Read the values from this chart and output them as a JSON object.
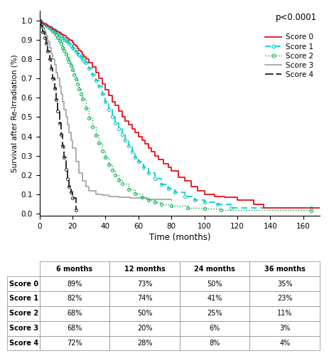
{
  "pvalue_text": "p<0.0001",
  "xlabel": "Time (months)",
  "ylabel": "Survival after Re-Irradiation (%)",
  "xlim": [
    0,
    170
  ],
  "ylim": [
    -0.01,
    1.05
  ],
  "xticks": [
    0,
    20,
    40,
    60,
    80,
    100,
    120,
    140,
    160
  ],
  "yticks": [
    0.0,
    0.1,
    0.2,
    0.3,
    0.4,
    0.5,
    0.6,
    0.7,
    0.8,
    0.9,
    1.0
  ],
  "score0_color": "#e8212b",
  "score1_color": "#00c8c8",
  "score2_color": "#00b050",
  "score3_color": "#a0a0a0",
  "score4_color": "#303030",
  "score0": {
    "time": [
      0,
      1,
      2,
      3,
      4,
      5,
      6,
      7,
      8,
      9,
      10,
      11,
      12,
      13,
      14,
      15,
      16,
      17,
      18,
      19,
      20,
      21,
      22,
      23,
      24,
      25,
      26,
      27,
      28,
      30,
      32,
      34,
      36,
      38,
      40,
      42,
      44,
      46,
      48,
      50,
      52,
      54,
      56,
      58,
      60,
      62,
      64,
      66,
      68,
      70,
      72,
      75,
      78,
      80,
      84,
      88,
      92,
      96,
      100,
      106,
      112,
      120,
      130,
      136,
      170
    ],
    "surv": [
      1.0,
      0.99,
      0.985,
      0.98,
      0.975,
      0.97,
      0.965,
      0.96,
      0.955,
      0.95,
      0.945,
      0.94,
      0.935,
      0.93,
      0.925,
      0.92,
      0.91,
      0.905,
      0.9,
      0.895,
      0.885,
      0.875,
      0.865,
      0.855,
      0.845,
      0.835,
      0.82,
      0.81,
      0.8,
      0.78,
      0.76,
      0.73,
      0.7,
      0.67,
      0.64,
      0.61,
      0.58,
      0.56,
      0.53,
      0.5,
      0.48,
      0.46,
      0.44,
      0.42,
      0.4,
      0.38,
      0.36,
      0.34,
      0.32,
      0.3,
      0.28,
      0.26,
      0.24,
      0.22,
      0.19,
      0.17,
      0.14,
      0.12,
      0.1,
      0.09,
      0.085,
      0.07,
      0.05,
      0.03,
      0.03
    ]
  },
  "score1": {
    "time": [
      0,
      1,
      2,
      3,
      4,
      5,
      6,
      7,
      8,
      9,
      10,
      11,
      12,
      13,
      14,
      15,
      16,
      17,
      18,
      19,
      20,
      21,
      22,
      23,
      24,
      25,
      26,
      27,
      28,
      30,
      32,
      34,
      36,
      38,
      40,
      42,
      44,
      46,
      48,
      50,
      52,
      54,
      56,
      58,
      60,
      63,
      66,
      70,
      74,
      78,
      82,
      88,
      94,
      100,
      108,
      116,
      165
    ],
    "surv": [
      1.0,
      0.99,
      0.985,
      0.98,
      0.975,
      0.97,
      0.965,
      0.96,
      0.955,
      0.95,
      0.945,
      0.94,
      0.93,
      0.92,
      0.91,
      0.9,
      0.895,
      0.89,
      0.88,
      0.87,
      0.86,
      0.85,
      0.84,
      0.83,
      0.82,
      0.81,
      0.8,
      0.79,
      0.78,
      0.75,
      0.72,
      0.69,
      0.66,
      0.62,
      0.58,
      0.54,
      0.5,
      0.47,
      0.44,
      0.41,
      0.38,
      0.35,
      0.32,
      0.29,
      0.27,
      0.24,
      0.21,
      0.18,
      0.15,
      0.13,
      0.11,
      0.09,
      0.07,
      0.06,
      0.05,
      0.03,
      0.03
    ]
  },
  "score2": {
    "time": [
      0,
      1,
      2,
      3,
      4,
      5,
      6,
      7,
      8,
      9,
      10,
      11,
      12,
      13,
      14,
      15,
      16,
      17,
      18,
      19,
      20,
      21,
      22,
      23,
      24,
      25,
      26,
      28,
      30,
      32,
      34,
      36,
      38,
      40,
      42,
      44,
      46,
      48,
      50,
      54,
      58,
      62,
      66,
      70,
      74,
      80,
      90,
      100,
      110,
      165
    ],
    "surv": [
      1.0,
      0.99,
      0.985,
      0.98,
      0.975,
      0.97,
      0.96,
      0.955,
      0.945,
      0.935,
      0.925,
      0.91,
      0.895,
      0.88,
      0.86,
      0.845,
      0.825,
      0.805,
      0.785,
      0.765,
      0.745,
      0.72,
      0.695,
      0.67,
      0.645,
      0.62,
      0.595,
      0.545,
      0.495,
      0.45,
      0.405,
      0.365,
      0.325,
      0.29,
      0.255,
      0.225,
      0.2,
      0.175,
      0.155,
      0.125,
      0.105,
      0.085,
      0.07,
      0.06,
      0.05,
      0.04,
      0.03,
      0.025,
      0.02,
      0.015
    ]
  },
  "score3": {
    "time": [
      0,
      1,
      2,
      3,
      4,
      5,
      6,
      7,
      8,
      9,
      10,
      11,
      12,
      13,
      14,
      15,
      16,
      17,
      18,
      19,
      20,
      22,
      24,
      26,
      28,
      30,
      34,
      38,
      42,
      48,
      55,
      65,
      80
    ],
    "surv": [
      1.0,
      0.98,
      0.96,
      0.94,
      0.92,
      0.89,
      0.86,
      0.83,
      0.8,
      0.77,
      0.73,
      0.7,
      0.66,
      0.62,
      0.58,
      0.54,
      0.5,
      0.46,
      0.42,
      0.38,
      0.34,
      0.27,
      0.21,
      0.17,
      0.14,
      0.12,
      0.1,
      0.095,
      0.09,
      0.085,
      0.08,
      0.075,
      0.07
    ]
  },
  "score4": {
    "time": [
      0,
      1,
      2,
      3,
      4,
      5,
      6,
      7,
      8,
      9,
      10,
      11,
      12,
      13,
      14,
      15,
      16,
      17,
      18,
      19,
      20,
      22
    ],
    "surv": [
      1.0,
      0.97,
      0.94,
      0.91,
      0.88,
      0.84,
      0.8,
      0.75,
      0.7,
      0.65,
      0.59,
      0.53,
      0.47,
      0.41,
      0.35,
      0.29,
      0.23,
      0.18,
      0.14,
      0.11,
      0.08,
      0.02
    ]
  },
  "table_rows": [
    "Score 0",
    "Score 1",
    "Score 2",
    "Score 3",
    "Score 4"
  ],
  "table_cols": [
    "",
    "6 months",
    "12 months",
    "24 months",
    "36 months"
  ],
  "table_data": [
    [
      "89%",
      "73%",
      "50%",
      "35%"
    ],
    [
      "82%",
      "74%",
      "41%",
      "23%"
    ],
    [
      "68%",
      "50%",
      "25%",
      "11%"
    ],
    [
      "68%",
      "20%",
      "6%",
      "3%"
    ],
    [
      "72%",
      "28%",
      "8%",
      "4%"
    ]
  ]
}
